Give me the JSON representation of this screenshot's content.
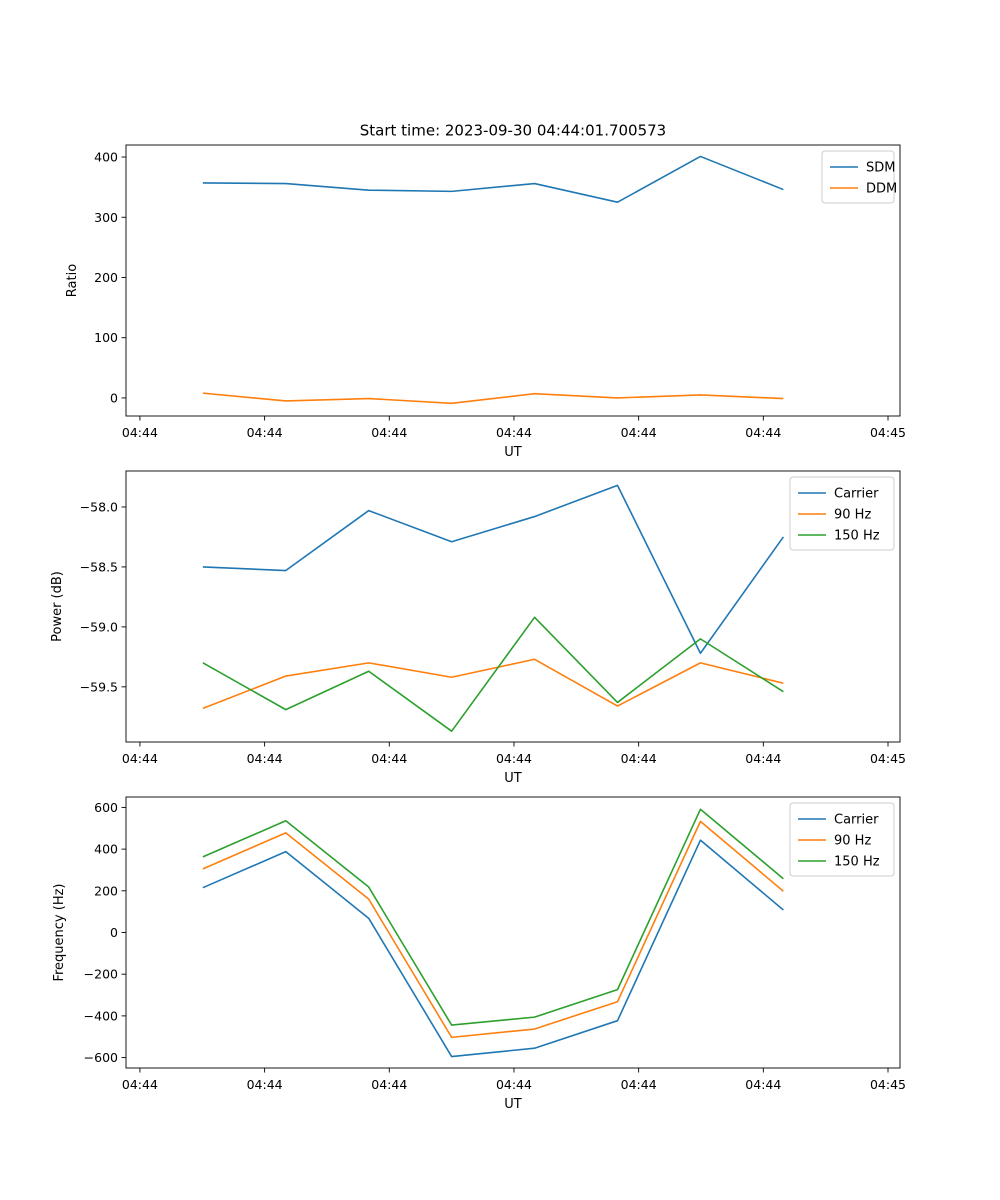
{
  "figure_title": "Start time: 2023-09-30 04:44:01.700573",
  "chart_data": [
    {
      "type": "line",
      "name": "ratio-panel",
      "xlabel": "UT",
      "ylabel": "Ratio",
      "xtick_labels": [
        "04:44",
        "04:44",
        "04:44",
        "04:44",
        "04:44",
        "04:44",
        "04:45"
      ],
      "ylim": [
        -30,
        420
      ],
      "yticks": [
        0,
        100,
        200,
        300,
        400
      ],
      "ytick_labels": [
        "0",
        "100",
        "200",
        "300",
        "400"
      ],
      "legend_position": "top-right",
      "series": [
        {
          "name": "SDM",
          "color": "#1f77b4",
          "values": [
            357,
            356,
            345,
            343,
            356,
            325,
            401,
            346
          ]
        },
        {
          "name": "DDM",
          "color": "#ff7f0e",
          "values": [
            8,
            -5,
            -1,
            -9,
            7,
            0,
            5,
            -1
          ]
        }
      ]
    },
    {
      "type": "line",
      "name": "power-panel",
      "xlabel": "UT",
      "ylabel": "Power (dB)",
      "xtick_labels": [
        "04:44",
        "04:44",
        "04:44",
        "04:44",
        "04:44",
        "04:44",
        "04:45"
      ],
      "ylim": [
        -59.96,
        -57.7
      ],
      "yticks": [
        -59.5,
        -59.0,
        -58.5,
        -58.0
      ],
      "ytick_labels": [
        "−59.5",
        "−59.0",
        "−58.5",
        "−58.0"
      ],
      "legend_position": "top-right",
      "series": [
        {
          "name": "Carrier",
          "color": "#1f77b4",
          "values": [
            -58.5,
            -58.53,
            -58.03,
            -58.29,
            -58.08,
            -57.82,
            -59.22,
            -58.25
          ]
        },
        {
          "name": "90 Hz",
          "color": "#ff7f0e",
          "values": [
            -59.68,
            -59.41,
            -59.3,
            -59.42,
            -59.27,
            -59.66,
            -59.3,
            -59.47
          ]
        },
        {
          "name": "150 Hz",
          "color": "#2ca02c",
          "values": [
            -59.3,
            -59.69,
            -59.37,
            -59.87,
            -58.92,
            -59.63,
            -59.1,
            -59.54
          ]
        }
      ]
    },
    {
      "type": "line",
      "name": "frequency-panel",
      "xlabel": "UT",
      "ylabel": "Frequency (Hz)",
      "xtick_labels": [
        "04:44",
        "04:44",
        "04:44",
        "04:44",
        "04:44",
        "04:44",
        "04:45"
      ],
      "ylim": [
        -650,
        650
      ],
      "yticks": [
        -600,
        -400,
        -200,
        0,
        200,
        400,
        600
      ],
      "ytick_labels": [
        "−600",
        "−400",
        "−200",
        "0",
        "200",
        "400",
        "600"
      ],
      "legend_position": "top-right",
      "series": [
        {
          "name": "Carrier",
          "color": "#1f77b4",
          "values": [
            215,
            388,
            68,
            -595,
            -555,
            -423,
            443,
            108
          ]
        },
        {
          "name": "90 Hz",
          "color": "#ff7f0e",
          "values": [
            305,
            478,
            160,
            -503,
            -463,
            -332,
            533,
            198
          ]
        },
        {
          "name": "150 Hz",
          "color": "#2ca02c",
          "values": [
            363,
            536,
            218,
            -444,
            -406,
            -274,
            591,
            258
          ]
        }
      ]
    }
  ]
}
